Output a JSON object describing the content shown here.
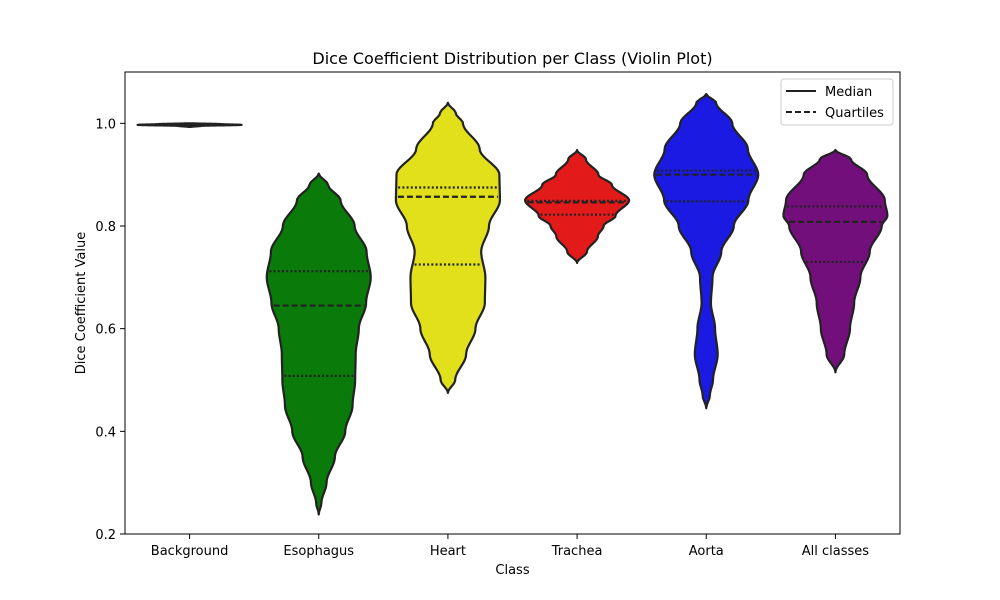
{
  "chart_data": {
    "type": "violin",
    "title": "Dice Coefficient Distribution per Class (Violin Plot)",
    "xlabel": "Class",
    "ylabel": "Dice Coefficient Value",
    "ylim": [
      0.2,
      1.1
    ],
    "yticks": [
      "0.2",
      "0.4",
      "0.6",
      "0.8",
      "1.0"
    ],
    "legend": {
      "placement": "top-right",
      "entries": [
        {
          "label": "Median",
          "style": "solid"
        },
        {
          "label": "Quartiles",
          "style": "dashed"
        }
      ]
    },
    "categories": [
      {
        "name": "Background",
        "color": "#1f1f1f",
        "min": 0.993,
        "max": 1.0,
        "q1": 0.996,
        "median": 0.997,
        "q3": 0.998,
        "profile": [
          [
            0.993,
            0.02
          ],
          [
            0.995,
            0.22
          ],
          [
            0.997,
            1.0
          ],
          [
            0.9985,
            0.6
          ],
          [
            1.0,
            0.1
          ]
        ]
      },
      {
        "name": "Esophagus",
        "color": "#0a7a0a",
        "min": 0.238,
        "max": 0.902,
        "q1": 0.508,
        "median": 0.645,
        "q3": 0.712,
        "profile": [
          [
            0.238,
            0.0
          ],
          [
            0.26,
            0.05
          ],
          [
            0.3,
            0.15
          ],
          [
            0.35,
            0.31
          ],
          [
            0.4,
            0.51
          ],
          [
            0.45,
            0.65
          ],
          [
            0.5,
            0.7
          ],
          [
            0.55,
            0.71
          ],
          [
            0.6,
            0.77
          ],
          [
            0.65,
            0.91
          ],
          [
            0.7,
            1.0
          ],
          [
            0.75,
            0.92
          ],
          [
            0.8,
            0.69
          ],
          [
            0.85,
            0.42
          ],
          [
            0.88,
            0.18
          ],
          [
            0.902,
            0.0
          ]
        ]
      },
      {
        "name": "Heart",
        "color": "#e2e01a",
        "min": 0.475,
        "max": 1.04,
        "q1": 0.725,
        "median": 0.857,
        "q3": 0.875,
        "profile": [
          [
            0.475,
            0.0
          ],
          [
            0.5,
            0.14
          ],
          [
            0.55,
            0.35
          ],
          [
            0.6,
            0.53
          ],
          [
            0.65,
            0.71
          ],
          [
            0.7,
            0.72
          ],
          [
            0.75,
            0.64
          ],
          [
            0.8,
            0.79
          ],
          [
            0.85,
            1.0
          ],
          [
            0.9,
            0.99
          ],
          [
            0.95,
            0.61
          ],
          [
            1.0,
            0.29
          ],
          [
            1.02,
            0.15
          ],
          [
            1.04,
            0.0
          ]
        ]
      },
      {
        "name": "Trachea",
        "color": "#e21a1a",
        "min": 0.728,
        "max": 0.948,
        "q1": 0.822,
        "median": 0.846,
        "q3": 0.849,
        "profile": [
          [
            0.728,
            0.0
          ],
          [
            0.75,
            0.19
          ],
          [
            0.78,
            0.4
          ],
          [
            0.8,
            0.51
          ],
          [
            0.82,
            0.74
          ],
          [
            0.85,
            1.0
          ],
          [
            0.88,
            0.67
          ],
          [
            0.9,
            0.41
          ],
          [
            0.93,
            0.17
          ],
          [
            0.948,
            0.0
          ]
        ]
      },
      {
        "name": "Aorta",
        "color": "#1a1ae2",
        "min": 0.445,
        "max": 1.057,
        "q1": 0.848,
        "median": 0.9,
        "q3": 0.908,
        "profile": [
          [
            0.445,
            0.0
          ],
          [
            0.47,
            0.07
          ],
          [
            0.5,
            0.13
          ],
          [
            0.55,
            0.22
          ],
          [
            0.6,
            0.17
          ],
          [
            0.65,
            0.09
          ],
          [
            0.7,
            0.12
          ],
          [
            0.75,
            0.29
          ],
          [
            0.8,
            0.53
          ],
          [
            0.85,
            0.81
          ],
          [
            0.9,
            1.0
          ],
          [
            0.95,
            0.8
          ],
          [
            1.0,
            0.5
          ],
          [
            1.04,
            0.19
          ],
          [
            1.057,
            0.0
          ]
        ]
      },
      {
        "name": "All classes",
        "color": "#720f7a",
        "min": 0.515,
        "max": 0.948,
        "q1": 0.73,
        "median": 0.808,
        "q3": 0.838,
        "profile": [
          [
            0.515,
            0.0
          ],
          [
            0.55,
            0.17
          ],
          [
            0.6,
            0.28
          ],
          [
            0.65,
            0.36
          ],
          [
            0.7,
            0.48
          ],
          [
            0.75,
            0.66
          ],
          [
            0.8,
            0.89
          ],
          [
            0.82,
            1.0
          ],
          [
            0.85,
            0.95
          ],
          [
            0.9,
            0.61
          ],
          [
            0.93,
            0.3
          ],
          [
            0.948,
            0.0
          ]
        ]
      }
    ]
  }
}
